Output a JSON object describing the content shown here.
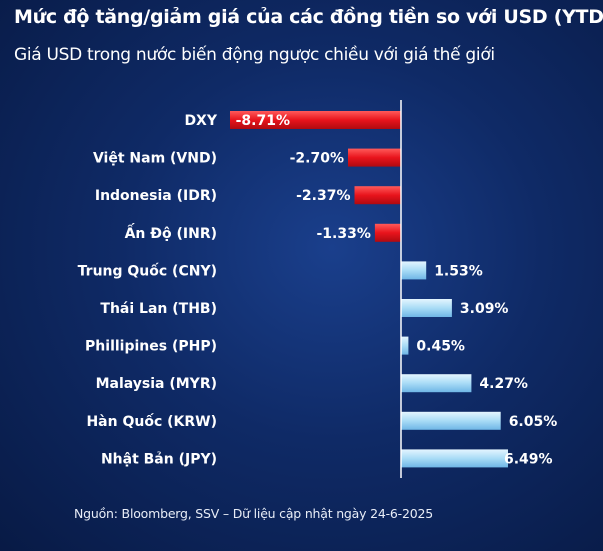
{
  "header": {
    "title": "Mức độ tăng/giảm giá của các đồng tiền so với USD (YTD)",
    "subtitle": "Giá USD trong nước biến động ngược chiều với giá thế giới"
  },
  "footer": {
    "source": "Nguồn: Bloomberg, SSV – Dữ liệu cập nhật ngày 24-6-2025"
  },
  "colors": {
    "negative": "#e8141c",
    "positive": "#a9dcf6",
    "axis": "#ffffff"
  },
  "chart_data": {
    "type": "bar",
    "orientation": "horizontal",
    "title": "Mức độ tăng/giảm giá của các đồng tiền so với USD (YTD)",
    "subtitle": "Giá USD trong nước biến động ngược chiều với giá thế giới",
    "unit": "%",
    "categories": [
      "DXY",
      "Việt Nam (VND)",
      "Indonesia (IDR)",
      "Ấn Độ (INR)",
      "Trung Quốc (CNY)",
      "Thái Lan (THB)",
      "Phillipines (PHP)",
      "Malaysia (MYR)",
      "Hàn Quốc (KRW)",
      "Nhật Bản (JPY)"
    ],
    "values": [
      -8.71,
      -2.7,
      -2.37,
      -1.33,
      1.53,
      3.09,
      0.45,
      4.27,
      6.05,
      6.49
    ],
    "labels": [
      "-8.71%",
      "-2.70%",
      "-2.37%",
      "-1.33%",
      "1.53%",
      "3.09%",
      "0.45%",
      "4.27%",
      "6.05%",
      "6.49%"
    ],
    "xlim": [
      -8.71,
      6.49
    ],
    "grid": false,
    "legend": "none"
  }
}
